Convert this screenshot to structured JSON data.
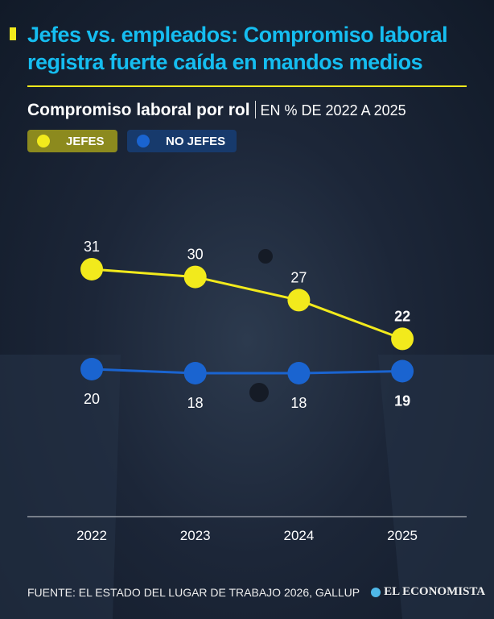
{
  "title": "Jefes vs. empleados: Compromiso laboral registra fuerte caída en mandos medios",
  "subtitle": "Compromiso laboral por rol",
  "unit": "EN % DE 2022 A 2025",
  "footer": {
    "source": "FUENTE: EL ESTADO DEL LUGAR DE TRABAJO 2026, GALLUP",
    "logo": "EL ECONOMISTA"
  },
  "colors": {
    "accent": "#f2ea1c",
    "title": "#15bdf0",
    "jefes": "#f2ea1c",
    "no_jefes": "#1a64d0"
  },
  "chart_data": {
    "type": "line",
    "categories": [
      "2022",
      "2023",
      "2024",
      "2025"
    ],
    "series": [
      {
        "name": "JEFES",
        "color": "#f2ea1c",
        "values": [
          31,
          30,
          27,
          22
        ]
      },
      {
        "name": "NO JEFES",
        "color": "#1a64d0",
        "values": [
          20,
          18,
          18,
          19
        ]
      }
    ],
    "grid": false,
    "legend": "top-left"
  }
}
